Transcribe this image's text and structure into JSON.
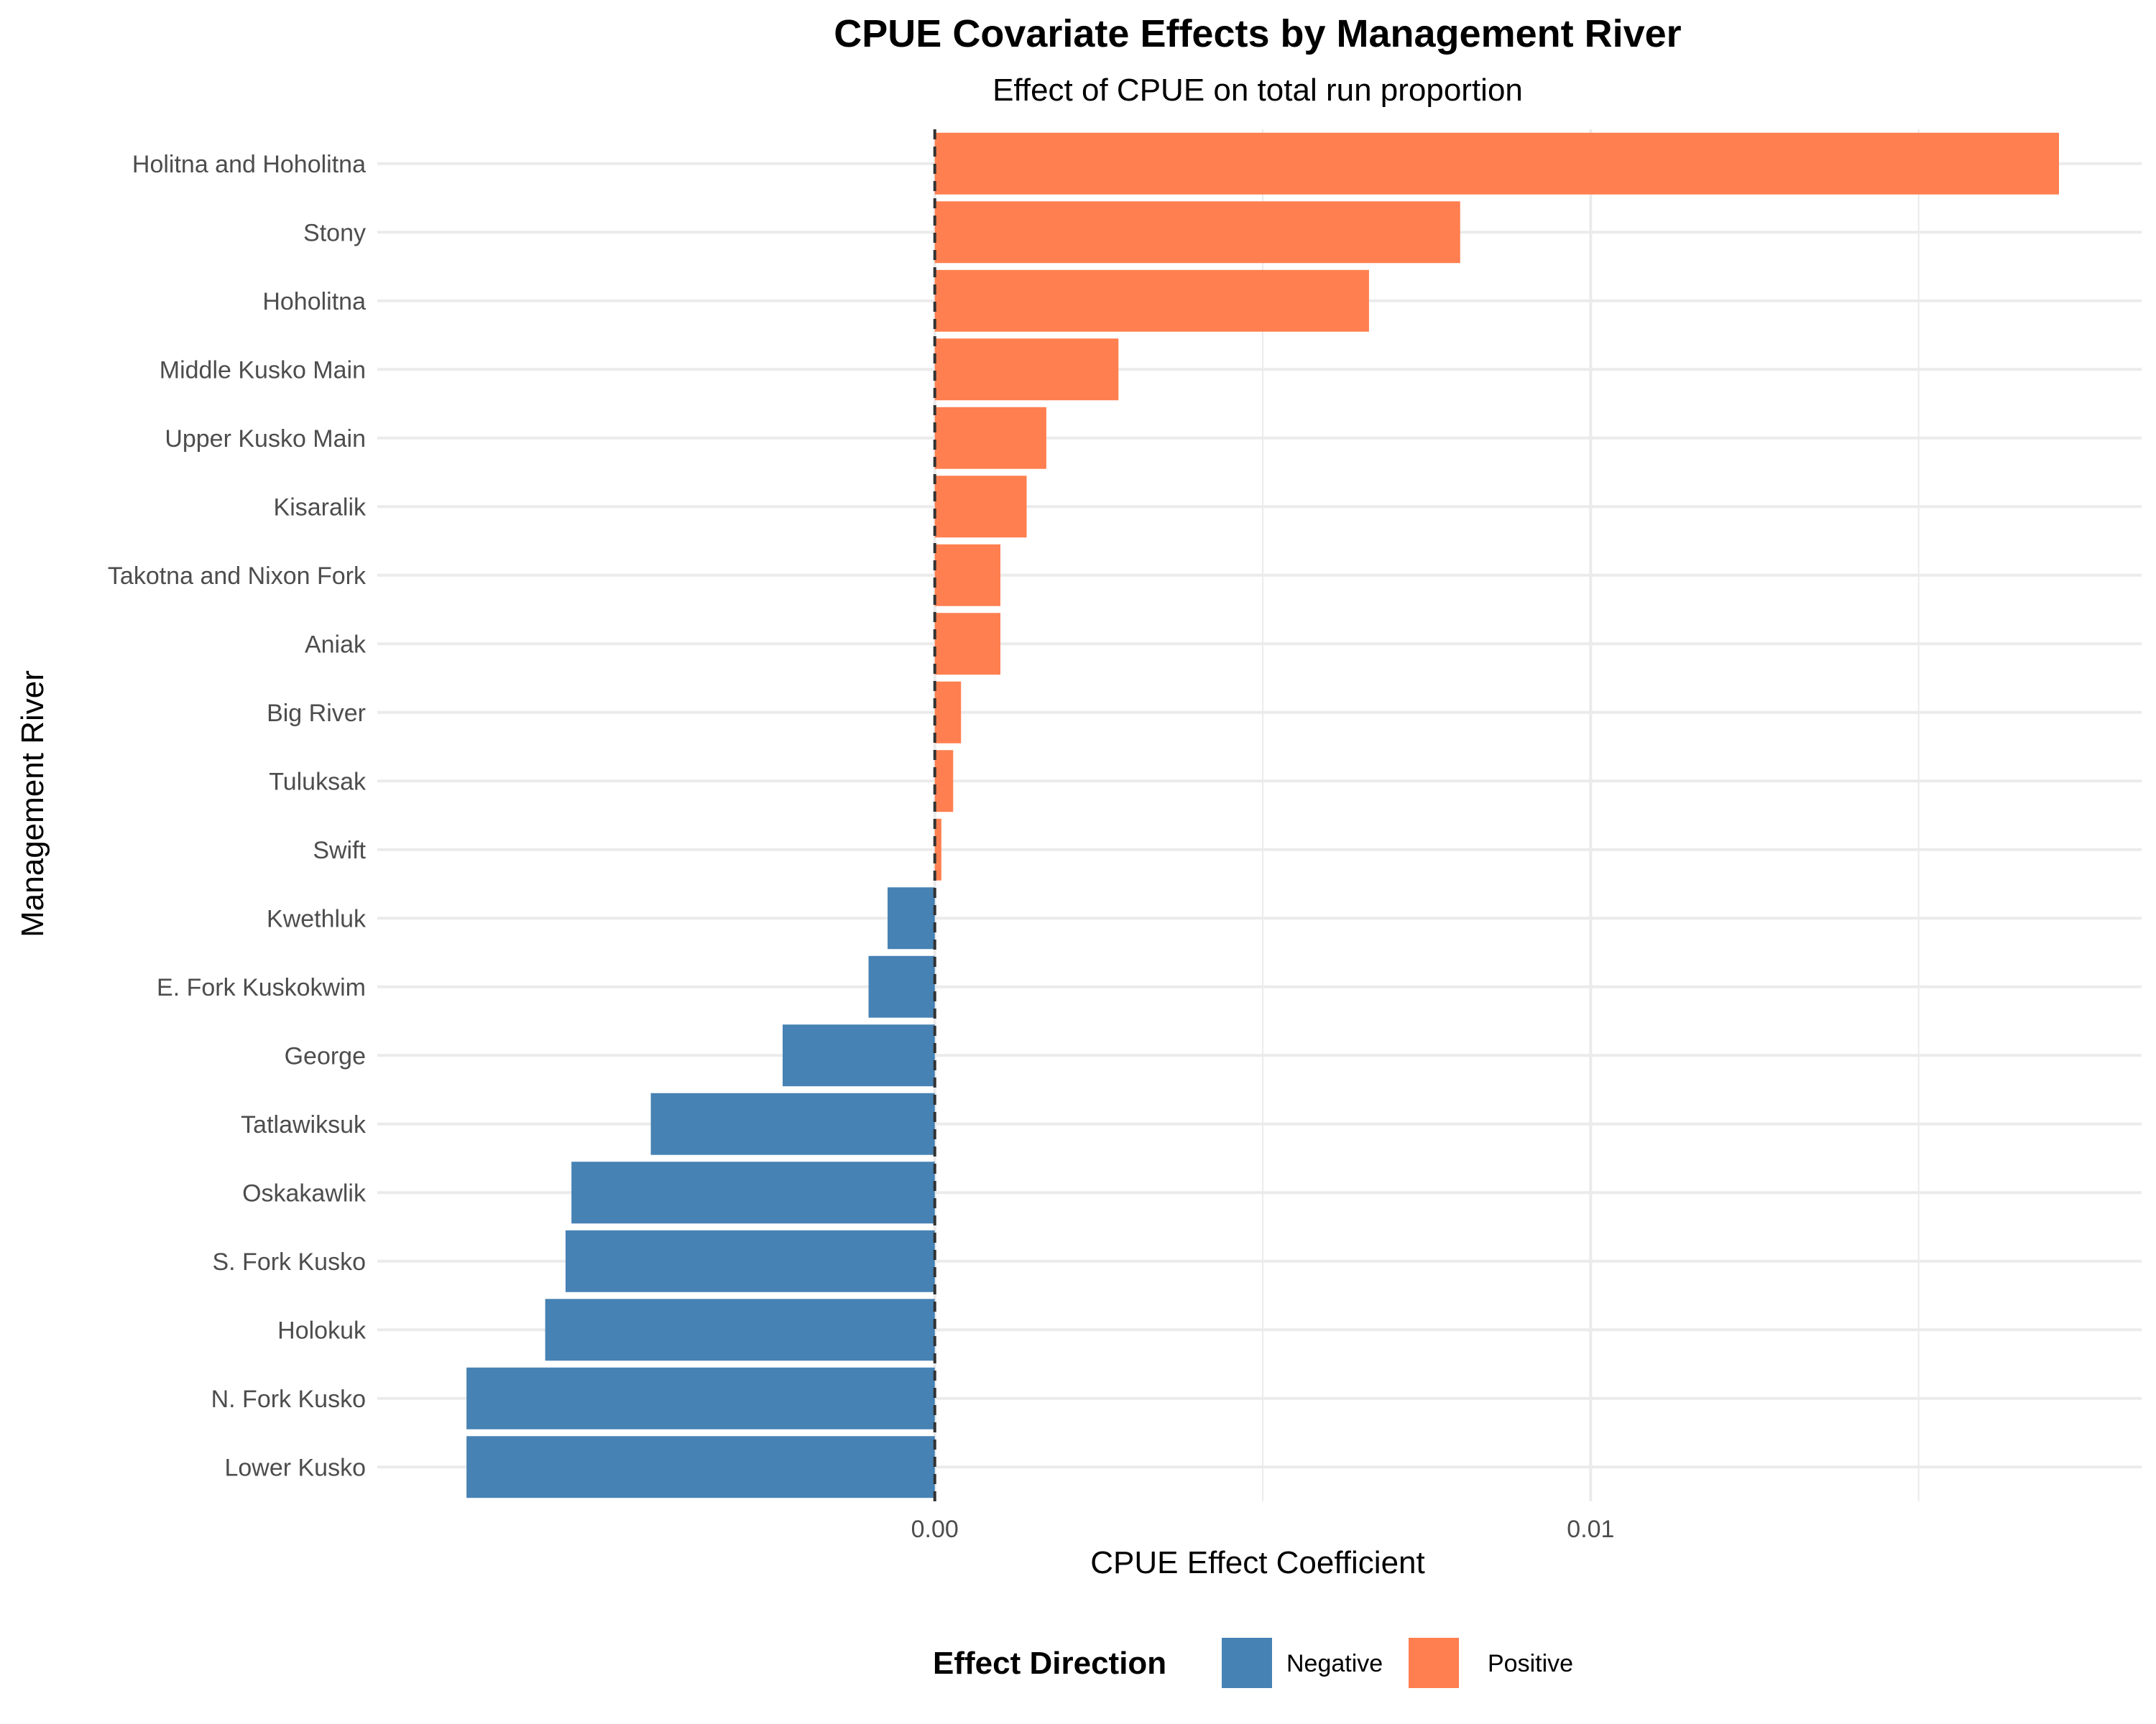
{
  "chart_data": {
    "type": "bar",
    "orientation": "horizontal",
    "title": "CPUE Covariate Effects by Management River",
    "subtitle": "Effect of CPUE on total run proportion",
    "xlabel": "CPUE Effect Coefficient",
    "ylabel": "Management River",
    "xlim": [
      -0.0085,
      0.0184
    ],
    "xticks": [
      0.0,
      0.01
    ],
    "xtick_labels": [
      "0.00",
      "0.01"
    ],
    "grid": true,
    "reference_line": {
      "x": 0,
      "style": "dashed"
    },
    "categories": [
      "Holitna and Hoholitna",
      "Stony",
      "Hoholitna",
      "Middle Kusko Main",
      "Upper Kusko Main",
      "Kisaralik",
      "Takotna and Nixon Fork",
      "Aniak",
      "Big River",
      "Tuluksak",
      "Swift",
      "Kwethluk",
      "E. Fork Kuskokwim",
      "George",
      "Tatlawiksuk",
      "Oskakawlik",
      "S. Fork Kusko",
      "Holokuk",
      "N. Fork Kusko",
      "Lower Kusko"
    ],
    "values": [
      0.01714,
      0.00801,
      0.00662,
      0.0028,
      0.0017,
      0.0014,
      0.001,
      0.001,
      0.0004,
      0.00028,
      0.0001,
      -0.00072,
      -0.00101,
      -0.00232,
      -0.00433,
      -0.00554,
      -0.00563,
      -0.00594,
      -0.00714,
      -0.00714
    ],
    "direction": [
      "Positive",
      "Positive",
      "Positive",
      "Positive",
      "Positive",
      "Positive",
      "Positive",
      "Positive",
      "Positive",
      "Positive",
      "Positive",
      "Negative",
      "Negative",
      "Negative",
      "Negative",
      "Negative",
      "Negative",
      "Negative",
      "Negative",
      "Negative"
    ],
    "legend": {
      "title": "Effect Direction",
      "position": "bottom",
      "entries": [
        {
          "label": "Negative",
          "color": "#4682B4"
        },
        {
          "label": "Positive",
          "color": "#FF7F50"
        }
      ]
    }
  }
}
